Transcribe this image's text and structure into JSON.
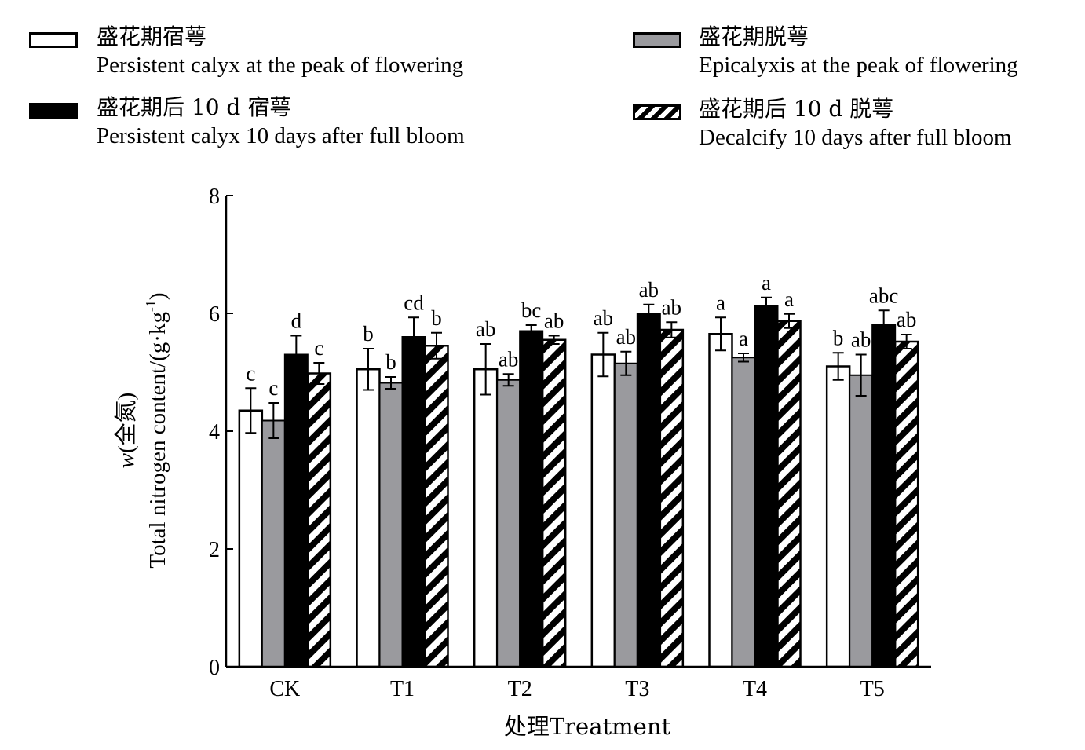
{
  "legend": [
    {
      "cn": "盛花期宿萼",
      "en": "Persistent calyx at the peak of flowering",
      "style": "white"
    },
    {
      "cn": "盛花期脱萼",
      "en": "Epicalyxis at the peak of flowering",
      "style": "gray"
    },
    {
      "cn": "盛花期后 10 d 宿萼",
      "en": "Persistent calyx 10 days after full bloom",
      "style": "black"
    },
    {
      "cn": "盛花期后 10 d 脱萼",
      "en": "Decalcify 10 days after full bloom",
      "style": "hatch"
    }
  ],
  "colors": {
    "gray": "#9a9a9e",
    "black": "#000000",
    "white": "#ffffff"
  },
  "chart_data": {
    "type": "bar",
    "xlabel": "处理Treatment",
    "ylabel_italic": "w",
    "ylabel_cn": "(全氮)",
    "ylabel_en": "Total nitrogen content/(g·kg",
    "ylabel_sup": "-1",
    "ylabel_close": ")",
    "ylim": [
      0,
      8
    ],
    "yticks": [
      0,
      2,
      4,
      6,
      8
    ],
    "categories": [
      "CK",
      "T1",
      "T2",
      "T3",
      "T4",
      "T5"
    ],
    "series": [
      {
        "name": "盛花期宿萼 Persistent calyx at the peak of flowering",
        "style": "white",
        "values": [
          4.35,
          5.05,
          5.05,
          5.3,
          5.65,
          5.1
        ],
        "errors": [
          0.38,
          0.35,
          0.43,
          0.37,
          0.28,
          0.23
        ],
        "labels": [
          "c",
          "b",
          "ab",
          "ab",
          "a",
          "b"
        ]
      },
      {
        "name": "盛花期脱萼 Epicalyxis at the peak of flowering",
        "style": "gray",
        "values": [
          4.18,
          4.82,
          4.87,
          5.15,
          5.25,
          4.95
        ],
        "errors": [
          0.3,
          0.1,
          0.1,
          0.2,
          0.07,
          0.35
        ],
        "labels": [
          "c",
          "b",
          "ab",
          "ab",
          "a",
          "ab"
        ]
      },
      {
        "name": "盛花期后 10 d 宿萼 Persistent calyx 10 days after full bloom",
        "style": "black",
        "values": [
          5.3,
          5.6,
          5.7,
          6.0,
          6.12,
          5.8
        ],
        "errors": [
          0.32,
          0.33,
          0.1,
          0.15,
          0.15,
          0.25
        ],
        "labels": [
          "d",
          "cd",
          "bc",
          "ab",
          "a",
          "abc"
        ]
      },
      {
        "name": "盛花期后 10 d 脱萼 Decalcify 10 days after full bloom",
        "style": "hatch",
        "values": [
          4.98,
          5.45,
          5.55,
          5.72,
          5.87,
          5.52
        ],
        "errors": [
          0.18,
          0.22,
          0.07,
          0.13,
          0.12,
          0.12
        ],
        "labels": [
          "c",
          "b",
          "ab",
          "ab",
          "a",
          "ab"
        ]
      }
    ]
  }
}
